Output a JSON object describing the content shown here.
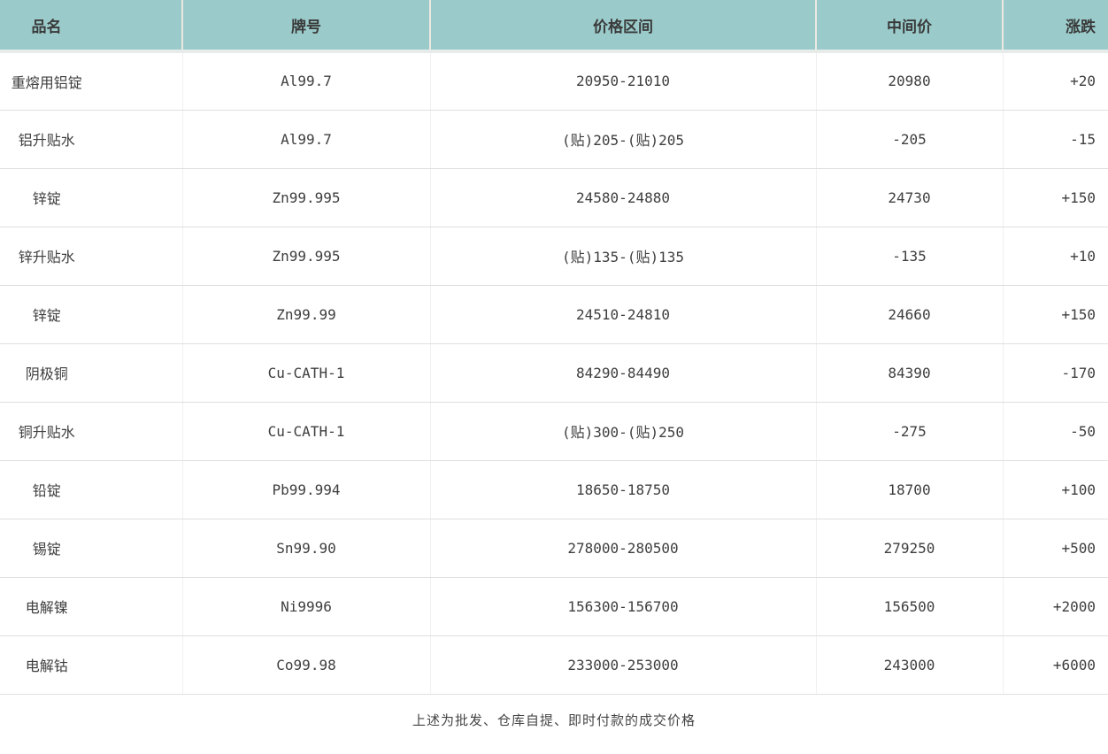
{
  "chart_data": {
    "type": "table",
    "title": "",
    "columns": [
      "品名",
      "牌号",
      "价格区间",
      "中间价",
      "涨跌"
    ],
    "rows": [
      [
        "重熔用铝锭",
        "Al99.7",
        "20950-21010",
        "20980",
        "+20"
      ],
      [
        "铝升贴水",
        "Al99.7",
        "(贴)205-(贴)205",
        "-205",
        "-15"
      ],
      [
        "锌锭",
        "Zn99.995",
        "24580-24880",
        "24730",
        "+150"
      ],
      [
        "锌升贴水",
        "Zn99.995",
        "(贴)135-(贴)135",
        "-135",
        "+10"
      ],
      [
        "锌锭",
        "Zn99.99",
        "24510-24810",
        "24660",
        "+150"
      ],
      [
        "阴极铜",
        "Cu-CATH-1",
        "84290-84490",
        "84390",
        "-170"
      ],
      [
        "铜升贴水",
        "Cu-CATH-1",
        "(贴)300-(贴)250",
        "-275",
        "-50"
      ],
      [
        "铅锭",
        "Pb99.994",
        "18650-18750",
        "18700",
        "+100"
      ],
      [
        "锡锭",
        "Sn99.90",
        "278000-280500",
        "279250",
        "+500"
      ],
      [
        "电解镍",
        "Ni9996",
        "156300-156700",
        "156500",
        "+2000"
      ],
      [
        "电解钴",
        "Co99.98",
        "233000-253000",
        "243000",
        "+6000"
      ]
    ],
    "footnote": "上述为批发、仓库自提、即时付款的成交价格"
  },
  "colors": {
    "header_bg": "#9acbca",
    "text": "#3e3e3e",
    "row_line": "#dfdfdf"
  }
}
